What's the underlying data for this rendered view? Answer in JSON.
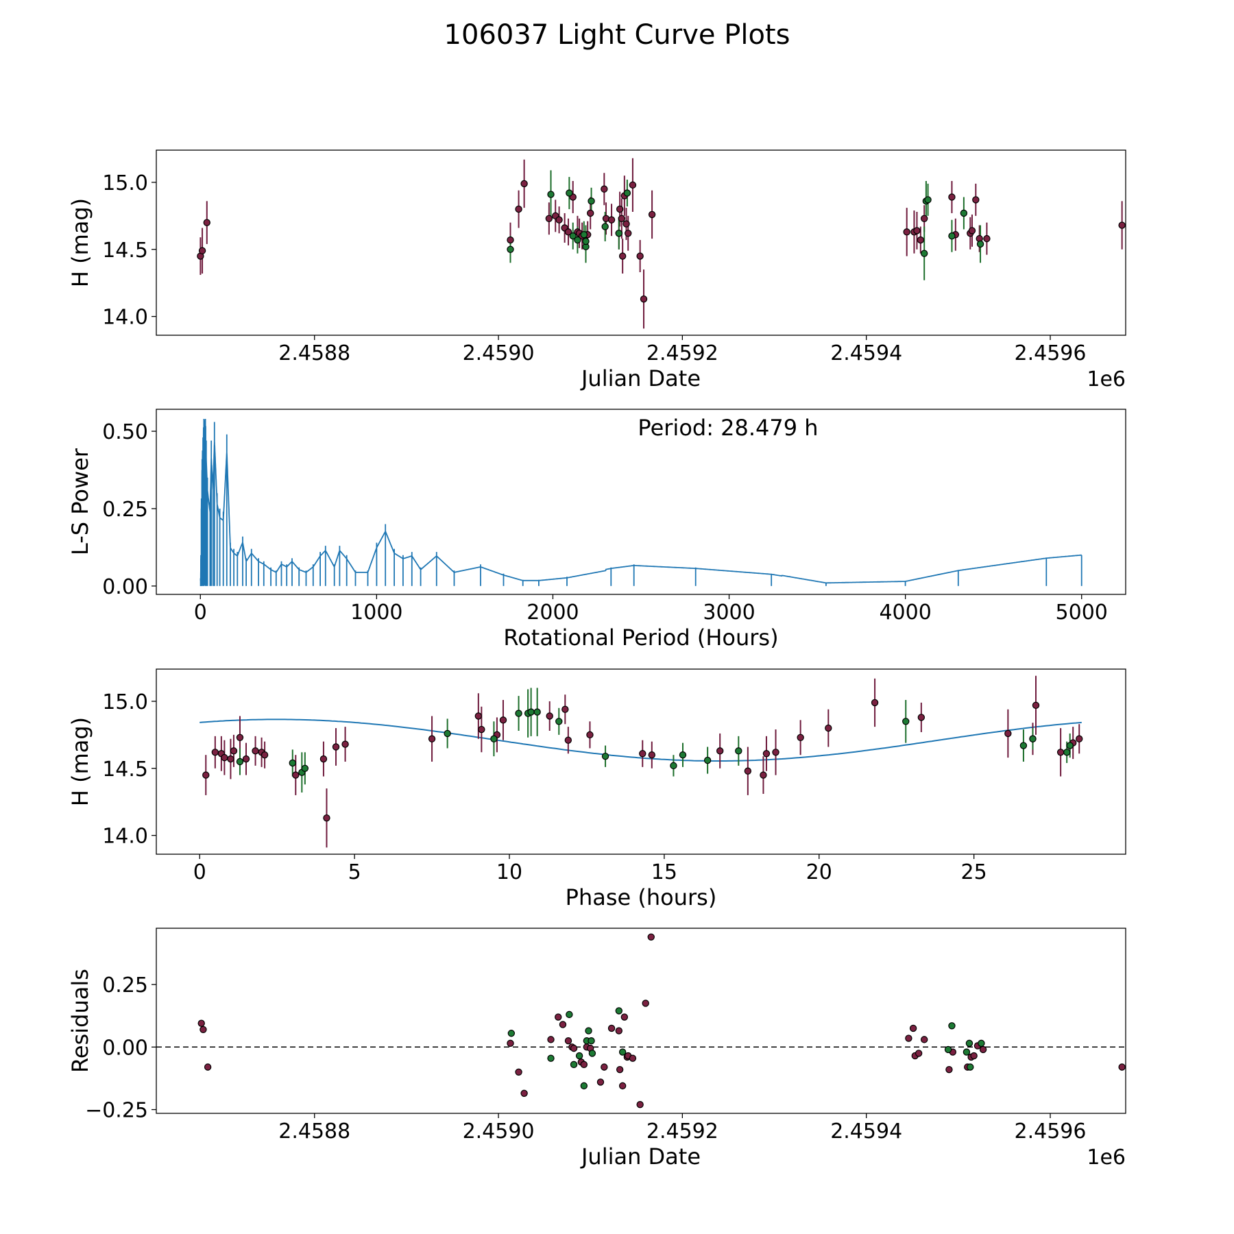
{
  "title": "106037 Light Curve Plots",
  "colors": {
    "red_point": "#7b2141",
    "green_point": "#1d7a34",
    "red_bar": "#6e1a3c",
    "green_bar": "#1c6e2a",
    "curve": "#1f77b4"
  },
  "chart_data": [
    {
      "id": "lightcurve",
      "type": "scatter",
      "xlabel": "Julian Date",
      "ylabel": "H (mag)",
      "offset_label": "1e6",
      "xlim": [
        2458628,
        2459682
      ],
      "ylim": [
        13.86,
        15.24
      ],
      "xticks": [
        2458800,
        2459000,
        2459200,
        2459400,
        2459600
      ],
      "xtick_labels": [
        "2.4588",
        "2.4590",
        "2.4592",
        "2.4594",
        "2.4596"
      ],
      "yticks": [
        14.0,
        14.5,
        15.0
      ],
      "ytick_labels": [
        "14.0",
        "14.5",
        "15.0"
      ],
      "series": [
        {
          "name": "red",
          "color": "red_point",
          "x": [
            2458676,
            2458678,
            2458683,
            2459013,
            2459022,
            2459028,
            2459055,
            2459062,
            2459066,
            2459072,
            2459076,
            2459081,
            2459086,
            2459088,
            2459091,
            2459097,
            2459100,
            2459115,
            2459117,
            2459123,
            2459131,
            2459132,
            2459134,
            2459135,
            2459137,
            2459139,
            2459141,
            2459146,
            2459154,
            2459158,
            2459167,
            2459444,
            2459452,
            2459455,
            2459459,
            2459463,
            2459493,
            2459497,
            2459513,
            2459515,
            2459519,
            2459523,
            2459531,
            2459678
          ],
          "y": [
            14.45,
            14.49,
            14.7,
            14.57,
            14.8,
            14.99,
            14.73,
            14.75,
            14.72,
            14.66,
            14.63,
            14.89,
            14.63,
            14.62,
            14.6,
            14.61,
            14.77,
            14.95,
            14.73,
            14.72,
            14.62,
            14.8,
            14.73,
            14.45,
            14.9,
            14.69,
            14.62,
            14.98,
            14.45,
            14.13,
            14.76,
            14.63,
            14.63,
            14.64,
            14.57,
            14.73,
            14.89,
            14.61,
            14.62,
            14.64,
            14.87,
            14.58,
            14.58,
            14.68
          ],
          "err": [
            0.14,
            0.17,
            0.16,
            0.13,
            0.14,
            0.18,
            0.12,
            0.12,
            0.1,
            0.11,
            0.1,
            0.12,
            0.12,
            0.11,
            0.1,
            0.1,
            0.12,
            0.12,
            0.12,
            0.12,
            0.12,
            0.13,
            0.15,
            0.13,
            0.15,
            0.12,
            0.13,
            0.2,
            0.12,
            0.22,
            0.18,
            0.18,
            0.16,
            0.14,
            0.1,
            0.1,
            0.12,
            0.12,
            0.12,
            0.12,
            0.12,
            0.1,
            0.12,
            0.18
          ]
        },
        {
          "name": "green",
          "color": "green_point",
          "x": [
            2459013,
            2459057,
            2459077,
            2459081,
            2459086,
            2459093,
            2459095,
            2459095,
            2459101,
            2459116,
            2459131,
            2459140,
            2459463,
            2459465,
            2459467,
            2459493,
            2459506,
            2459524
          ],
          "y": [
            14.5,
            14.91,
            14.92,
            14.6,
            14.57,
            14.61,
            14.52,
            14.56,
            14.86,
            14.67,
            14.62,
            14.92,
            14.47,
            14.86,
            14.87,
            14.6,
            14.77,
            14.54
          ],
          "err": [
            0.1,
            0.18,
            0.12,
            0.1,
            0.1,
            0.1,
            0.12,
            0.12,
            0.1,
            0.11,
            0.12,
            0.1,
            0.2,
            0.15,
            0.12,
            0.12,
            0.12,
            0.14
          ]
        }
      ]
    },
    {
      "id": "periodogram",
      "type": "line",
      "xlabel": "Rotational Period (Hours)",
      "ylabel": "L-S Power",
      "annotation": "Period: 28.479 h",
      "xlim": [
        -250,
        5250
      ],
      "ylim": [
        -0.027,
        0.571
      ],
      "xticks": [
        0,
        1000,
        2000,
        3000,
        4000,
        5000
      ],
      "xtick_labels": [
        "0",
        "1000",
        "2000",
        "3000",
        "4000",
        "5000"
      ],
      "yticks": [
        0.0,
        0.25,
        0.5
      ],
      "ytick_labels": [
        "0.00",
        "0.25",
        "0.50"
      ],
      "peaks": [
        [
          5,
          0.25
        ],
        [
          10,
          0.41
        ],
        [
          15,
          0.48
        ],
        [
          20,
          0.54
        ],
        [
          28.5,
          0.54
        ],
        [
          33,
          0.47
        ],
        [
          40,
          0.35
        ],
        [
          55,
          0.27
        ],
        [
          62,
          0.47
        ],
        [
          72,
          0.35
        ],
        [
          80,
          0.53
        ],
        [
          95,
          0.3
        ],
        [
          110,
          0.25
        ],
        [
          130,
          0.24
        ],
        [
          150,
          0.49
        ],
        [
          170,
          0.14
        ],
        [
          190,
          0.12
        ],
        [
          210,
          0.11
        ],
        [
          240,
          0.16
        ],
        [
          260,
          0.09
        ],
        [
          290,
          0.12
        ],
        [
          330,
          0.09
        ],
        [
          360,
          0.08
        ],
        [
          400,
          0.06
        ],
        [
          430,
          0.05
        ],
        [
          460,
          0.08
        ],
        [
          490,
          0.07
        ],
        [
          520,
          0.09
        ],
        [
          560,
          0.06
        ],
        [
          600,
          0.05
        ],
        [
          640,
          0.07
        ],
        [
          680,
          0.11
        ],
        [
          710,
          0.13
        ],
        [
          760,
          0.07
        ],
        [
          790,
          0.13
        ],
        [
          830,
          0.1
        ],
        [
          880,
          0.05
        ],
        [
          950,
          0.05
        ],
        [
          1000,
          0.14
        ],
        [
          1050,
          0.2
        ],
        [
          1100,
          0.12
        ],
        [
          1150,
          0.1
        ],
        [
          1200,
          0.11
        ],
        [
          1250,
          0.06
        ],
        [
          1340,
          0.11
        ],
        [
          1440,
          0.05
        ],
        [
          1590,
          0.07
        ],
        [
          1720,
          0.04
        ],
        [
          1830,
          0.02
        ],
        [
          1920,
          0.02
        ],
        [
          2080,
          0.03
        ],
        [
          2330,
          0.06
        ],
        [
          2460,
          0.07
        ],
        [
          2810,
          0.06
        ],
        [
          3240,
          0.04
        ],
        [
          3550,
          0.01
        ],
        [
          4000,
          0.015
        ],
        [
          4300,
          0.05
        ],
        [
          4800,
          0.09
        ],
        [
          5000,
          0.1
        ]
      ]
    },
    {
      "id": "folded",
      "type": "scatter",
      "xlabel": "Phase (hours)",
      "ylabel": "H (mag)",
      "xlim": [
        -1.4,
        29.9
      ],
      "ylim": [
        13.86,
        15.24
      ],
      "xticks": [
        0,
        5,
        10,
        15,
        20,
        25
      ],
      "xtick_labels": [
        "0",
        "5",
        "10",
        "15",
        "20",
        "25"
      ],
      "yticks": [
        14.0,
        14.5,
        15.0
      ],
      "ytick_labels": [
        "14.0",
        "14.5",
        "15.0"
      ],
      "model": {
        "mean": 14.71,
        "amp": 0.155,
        "period": 28.479,
        "phase0": 2.5
      },
      "series": [
        {
          "name": "red",
          "color": "red_point",
          "x": [
            0.2,
            0.5,
            0.7,
            0.8,
            1.0,
            1.1,
            1.3,
            1.5,
            1.8,
            2.0,
            2.1,
            3.1,
            4.0,
            4.1,
            4.4,
            4.7,
            7.5,
            9.0,
            9.1,
            9.6,
            9.8,
            11.3,
            11.8,
            11.9,
            12.6,
            14.3,
            14.6,
            16.8,
            17.7,
            18.2,
            18.3,
            18.6,
            19.4,
            20.3,
            21.8,
            23.3,
            26.1,
            26.9,
            27.0,
            27.8,
            28.2,
            28.4
          ],
          "y": [
            14.45,
            14.62,
            14.61,
            14.58,
            14.57,
            14.63,
            14.73,
            14.57,
            14.63,
            14.62,
            14.6,
            14.45,
            14.57,
            14.13,
            14.66,
            14.68,
            14.72,
            14.89,
            14.79,
            14.75,
            14.86,
            14.89,
            14.94,
            14.71,
            14.75,
            14.61,
            14.6,
            14.63,
            14.48,
            14.45,
            14.61,
            14.62,
            14.73,
            14.8,
            14.99,
            14.88,
            14.76,
            14.72,
            14.97,
            14.62,
            14.69,
            14.72
          ],
          "err": [
            0.15,
            0.12,
            0.13,
            0.13,
            0.15,
            0.12,
            0.16,
            0.12,
            0.11,
            0.11,
            0.1,
            0.15,
            0.13,
            0.22,
            0.14,
            0.13,
            0.17,
            0.17,
            0.17,
            0.13,
            0.15,
            0.11,
            0.11,
            0.1,
            0.1,
            0.1,
            0.1,
            0.13,
            0.18,
            0.14,
            0.13,
            0.17,
            0.13,
            0.14,
            0.18,
            0.11,
            0.18,
            0.12,
            0.22,
            0.18,
            0.12,
            0.11
          ]
        },
        {
          "name": "green",
          "color": "green_point",
          "x": [
            1.3,
            3.0,
            3.3,
            3.4,
            8.0,
            9.5,
            10.3,
            10.6,
            10.7,
            10.9,
            11.6,
            13.1,
            15.3,
            15.6,
            16.4,
            17.4,
            22.8,
            26.6,
            26.9,
            28.0,
            28.1
          ],
          "y": [
            14.55,
            14.54,
            14.47,
            14.5,
            14.76,
            14.72,
            14.91,
            14.91,
            14.92,
            14.92,
            14.85,
            14.59,
            14.52,
            14.6,
            14.56,
            14.63,
            14.85,
            14.67,
            14.72,
            14.62,
            14.67
          ],
          "err": [
            0.1,
            0.1,
            0.15,
            0.12,
            0.11,
            0.13,
            0.13,
            0.18,
            0.18,
            0.18,
            0.1,
            0.08,
            0.08,
            0.09,
            0.1,
            0.11,
            0.16,
            0.12,
            0.08,
            0.08,
            0.09
          ]
        }
      ]
    },
    {
      "id": "residuals",
      "type": "scatter",
      "xlabel": "Julian Date",
      "ylabel": "Residuals",
      "offset_label": "1e6",
      "xlim": [
        2458628,
        2459682
      ],
      "ylim": [
        -0.265,
        0.475
      ],
      "hline": 0,
      "xticks": [
        2458800,
        2459000,
        2459200,
        2459400,
        2459600
      ],
      "xtick_labels": [
        "2.4588",
        "2.4590",
        "2.4592",
        "2.4594",
        "2.4596"
      ],
      "yticks": [
        -0.25,
        0.0,
        0.25
      ],
      "ytick_labels": [
        "−0.25",
        "0.00",
        "0.25"
      ],
      "series": [
        {
          "name": "red",
          "color": "red_point",
          "x": [
            2458677,
            2458679,
            2458684,
            2459013,
            2459022,
            2459028,
            2459057,
            2459065,
            2459070,
            2459076,
            2459080,
            2459082,
            2459090,
            2459093,
            2459096,
            2459100,
            2459111,
            2459115,
            2459123,
            2459131,
            2459132,
            2459135,
            2459137,
            2459140,
            2459141,
            2459146,
            2459154,
            2459160,
            2459166,
            2459446,
            2459451,
            2459453,
            2459457,
            2459463,
            2459490,
            2459494,
            2459510,
            2459514,
            2459517,
            2459521,
            2459527,
            2459678
          ],
          "y": [
            0.095,
            0.07,
            -0.08,
            0.015,
            -0.1,
            -0.185,
            0.03,
            0.12,
            0.09,
            0.025,
            0.0,
            -0.005,
            -0.06,
            -0.07,
            0.0,
            -0.005,
            -0.14,
            -0.08,
            0.075,
            0.065,
            -0.09,
            -0.155,
            0.12,
            -0.04,
            -0.035,
            -0.045,
            -0.23,
            0.175,
            0.44,
            0.035,
            0.075,
            -0.035,
            -0.025,
            0.03,
            -0.09,
            -0.02,
            -0.08,
            -0.04,
            -0.035,
            0.005,
            -0.01,
            -0.08
          ]
        },
        {
          "name": "green",
          "color": "green_point",
          "x": [
            2459014,
            2459057,
            2459077,
            2459082,
            2459088,
            2459093,
            2459096,
            2459098,
            2459101,
            2459102,
            2459131,
            2459135,
            2459489,
            2459493,
            2459509,
            2459512,
            2459513,
            2459525
          ],
          "y": [
            0.055,
            -0.045,
            0.13,
            -0.07,
            -0.035,
            -0.155,
            0.025,
            0.065,
            0.025,
            -0.025,
            0.145,
            -0.02,
            -0.01,
            0.085,
            -0.02,
            0.015,
            -0.08,
            0.015
          ]
        }
      ]
    }
  ]
}
